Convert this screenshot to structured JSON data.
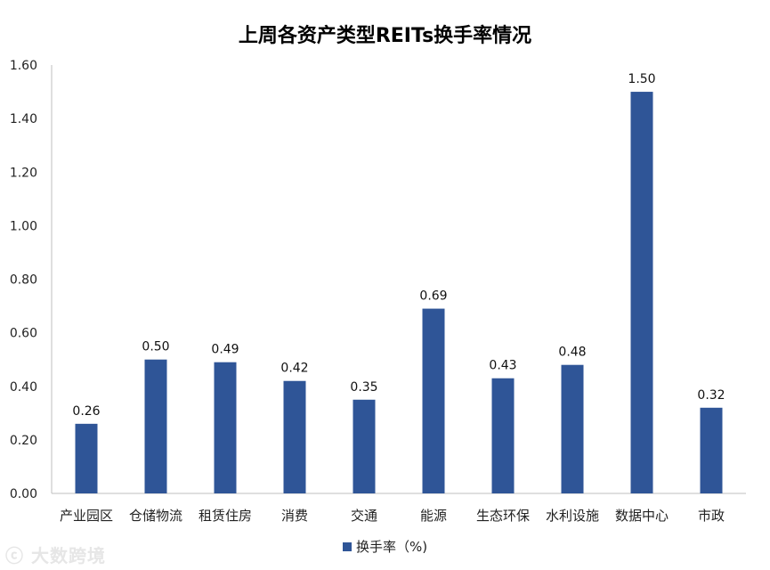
{
  "chart_data": {
    "type": "bar",
    "title": "上周各资产类型REITs换手率情况",
    "categories": [
      "产业园区",
      "仓储物流",
      "租赁住房",
      "消费",
      "交通",
      "能源",
      "生态环保",
      "水利设施",
      "数据中心",
      "市政"
    ],
    "series": [
      {
        "name": "换手率（%)",
        "values": [
          0.26,
          0.5,
          0.49,
          0.42,
          0.35,
          0.69,
          0.43,
          0.48,
          1.5,
          0.32
        ],
        "data_labels": [
          "0.26",
          "0.50",
          "0.49",
          "0.42",
          "0.35",
          "0.69",
          "0.43",
          "0.48",
          "1.50",
          "0.32"
        ]
      }
    ],
    "ylim": [
      0,
      1.6
    ],
    "y_ticks": [
      "0.00",
      "0.20",
      "0.40",
      "0.60",
      "0.80",
      "1.00",
      "1.20",
      "1.40",
      "1.60"
    ],
    "grid": false,
    "legend_position": "bottom-center",
    "bar_color": "#2f5597"
  },
  "watermark": "大数跨境"
}
